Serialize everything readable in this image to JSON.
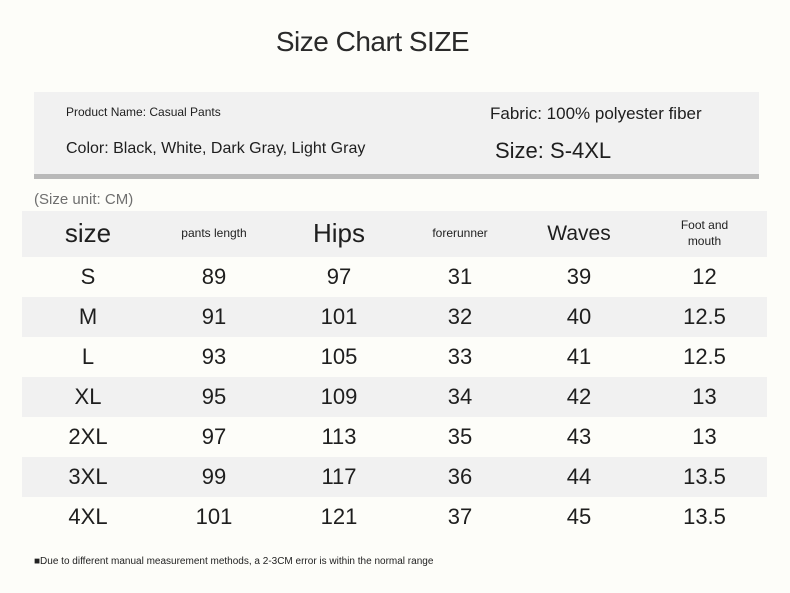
{
  "title": "Size Chart SIZE",
  "info": {
    "product_name": "Product Name: Casual Pants",
    "color": "Color: Black, White, Dark Gray, Light Gray",
    "fabric": "Fabric: 100% polyester fiber",
    "size_range": "Size: S-4XL"
  },
  "unit_label": "(Size unit: CM)",
  "table": {
    "headers": [
      "size",
      "pants length",
      "Hips",
      "forerunner",
      "Waves",
      "Foot and mouth"
    ],
    "rows": [
      [
        "S",
        "89",
        "97",
        "31",
        "39",
        "12"
      ],
      [
        "M",
        "91",
        "101",
        "32",
        "40",
        "12.5"
      ],
      [
        "L",
        "93",
        "105",
        "33",
        "41",
        "12.5"
      ],
      [
        "XL",
        "95",
        "109",
        "34",
        "42",
        "13"
      ],
      [
        "2XL",
        "97",
        "113",
        "35",
        "43",
        "13"
      ],
      [
        "3XL",
        "99",
        "117",
        "36",
        "44",
        "13.5"
      ],
      [
        "4XL",
        "101",
        "121",
        "37",
        "45",
        "13.5"
      ]
    ]
  },
  "note": "■Due to different manual measurement methods, a 2-3CM error is within the normal range"
}
